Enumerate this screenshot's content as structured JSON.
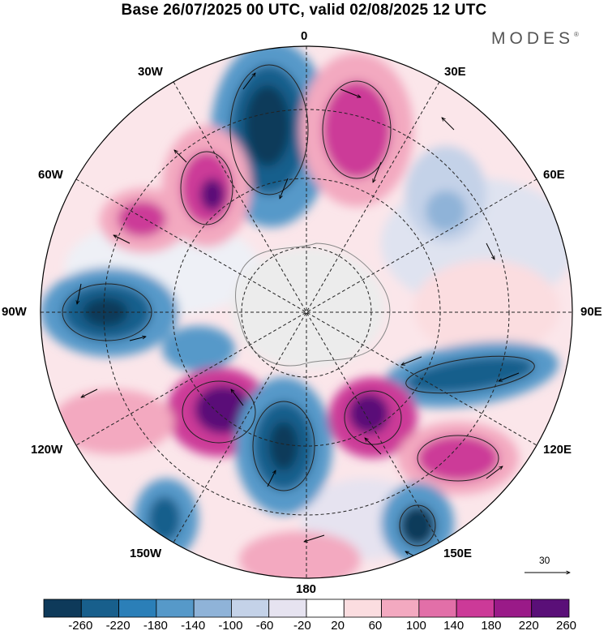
{
  "title": "Base 26/07/2025 00 UTC, valid 02/08/2025 12 UTC",
  "brand": "MODES",
  "brand_mark": "®",
  "meridian_labels": {
    "top": "0",
    "bottom": "180",
    "left": "90W",
    "right": "90E",
    "w30": "30W",
    "w60": "60W",
    "w120": "120W",
    "w150": "150W",
    "e30": "30E",
    "e60": "60E",
    "e120": "120E",
    "e150": "150E"
  },
  "reference_vector": "30",
  "colorbar": {
    "tick_labels": [
      "-260",
      "-220",
      "-180",
      "-140",
      "-100",
      "-60",
      "-20",
      "20",
      "60",
      "100",
      "140",
      "180",
      "220",
      "260"
    ],
    "colors": [
      "#0e3a5a",
      "#185f8c",
      "#2b7fb8",
      "#5699c9",
      "#8fb3d8",
      "#c4d2e8",
      "#e6e3f0",
      "#ffffff",
      "#fbdde0",
      "#f3a9c0",
      "#e26fa8",
      "#cc3a98",
      "#9a1a88",
      "#5a0f78"
    ]
  },
  "field_colors": {
    "land": "#ececec",
    "coast": "#888888",
    "grid": "#222222"
  }
}
